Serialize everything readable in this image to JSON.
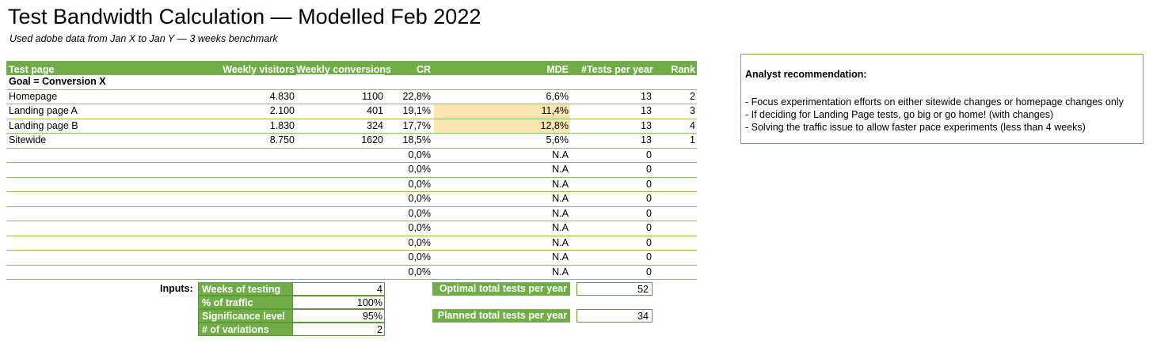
{
  "sheet": {
    "title": "Test Bandwidth Calculation — Modelled Feb 2022",
    "subtitle": "Used adobe data from Jan X to Jan Y — 3 weeks benchmark"
  },
  "table": {
    "headers": {
      "test_page": "Test page",
      "weekly_visitors": "Weekly visitors",
      "weekly_conversions": "Weekly conversions",
      "cr": "CR",
      "mde": "MDE",
      "tests_per_year": "#Tests per year",
      "rank": "Rank"
    },
    "goal": "Goal = Conversion X",
    "rows": [
      {
        "page": "Homepage",
        "visitors": "4.830",
        "conversions": "1100",
        "cr": "22,8%",
        "mde": "6,6%",
        "tests": "13",
        "rank": "2",
        "highlight": false
      },
      {
        "page": "Landing page A",
        "visitors": "2.100",
        "conversions": "401",
        "cr": "19,1%",
        "mde": "11,4%",
        "tests": "13",
        "rank": "3",
        "highlight": true
      },
      {
        "page": "Landing page B",
        "visitors": "1.830",
        "conversions": "324",
        "cr": "17,7%",
        "mde": "12,8%",
        "tests": "13",
        "rank": "4",
        "highlight": true
      },
      {
        "page": "Sitewide",
        "visitors": "8.750",
        "conversions": "1620",
        "cr": "18,5%",
        "mde": "5,6%",
        "tests": "13",
        "rank": "1",
        "highlight": false
      },
      {
        "page": "",
        "visitors": "",
        "conversions": "",
        "cr": "0,0%",
        "mde": "N.A",
        "tests": "0",
        "rank": "",
        "highlight": false
      },
      {
        "page": "",
        "visitors": "",
        "conversions": "",
        "cr": "0,0%",
        "mde": "N.A",
        "tests": "0",
        "rank": "",
        "highlight": false
      },
      {
        "page": "",
        "visitors": "",
        "conversions": "",
        "cr": "0,0%",
        "mde": "N.A",
        "tests": "0",
        "rank": "",
        "highlight": false
      },
      {
        "page": "",
        "visitors": "",
        "conversions": "",
        "cr": "0,0%",
        "mde": "N.A",
        "tests": "0",
        "rank": "",
        "highlight": false
      },
      {
        "page": "",
        "visitors": "",
        "conversions": "",
        "cr": "0,0%",
        "mde": "N.A",
        "tests": "0",
        "rank": "",
        "highlight": false
      },
      {
        "page": "",
        "visitors": "",
        "conversions": "",
        "cr": "0,0%",
        "mde": "N.A",
        "tests": "0",
        "rank": "",
        "highlight": false
      },
      {
        "page": "",
        "visitors": "",
        "conversions": "",
        "cr": "0,0%",
        "mde": "N.A",
        "tests": "0",
        "rank": "",
        "highlight": false
      },
      {
        "page": "",
        "visitors": "",
        "conversions": "",
        "cr": "0,0%",
        "mde": "N.A",
        "tests": "0",
        "rank": "",
        "highlight": false
      },
      {
        "page": "",
        "visitors": "",
        "conversions": "",
        "cr": "0,0%",
        "mde": "N.A",
        "tests": "0",
        "rank": "",
        "highlight": false
      }
    ]
  },
  "inputs": {
    "label": "Inputs:",
    "weeks_label": "Weeks of testing",
    "weeks_value": "4",
    "traffic_label": "% of traffic",
    "traffic_value": "100%",
    "significance_label": "Significance level",
    "significance_value": "95%",
    "variations_label": "# of variations",
    "variations_value": "2"
  },
  "totals": {
    "optimal_label": "Optimal total tests per year",
    "optimal_value": "52",
    "planned_label": "Planned total tests per year",
    "planned_value": "34"
  },
  "recommendation": {
    "title": "Analyst recommendation:",
    "items": [
      "- Focus experimentation efforts on either sitewide changes or homepage changes only",
      "- If deciding for Landing Page tests, go big or go home! (with changes)",
      "- Solving the traffic issue to allow faster pace experiments (less than 4 weeks)"
    ]
  },
  "colors": {
    "header_green": "#70ad47",
    "highlight_yellow": "#fbe5b0"
  }
}
